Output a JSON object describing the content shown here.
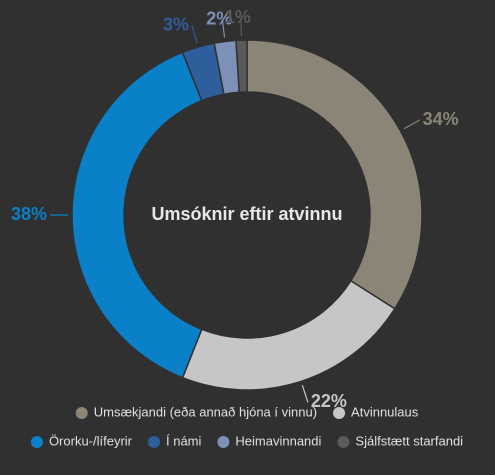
{
  "chart_data": {
    "type": "donut",
    "title": "Umsóknir eftir atvinnu",
    "categories": [
      "Umsækjandi (eða annað hjóna í vinnu)",
      "Atvinnulaus",
      "Örorku-/lífeyrir",
      "Í námi",
      "Heimavinnandi",
      "Sjálfstætt starfandi"
    ],
    "values": [
      34,
      22,
      38,
      3,
      2,
      1
    ],
    "value_labels": [
      "34%",
      "22%",
      "38%",
      "3%",
      "2%",
      "1%"
    ],
    "colors": [
      "#8b8578",
      "#c6c6c6",
      "#0a80c8",
      "#2f5e9c",
      "#7d90b8",
      "#5a5a5a"
    ],
    "legend": "bottom"
  }
}
